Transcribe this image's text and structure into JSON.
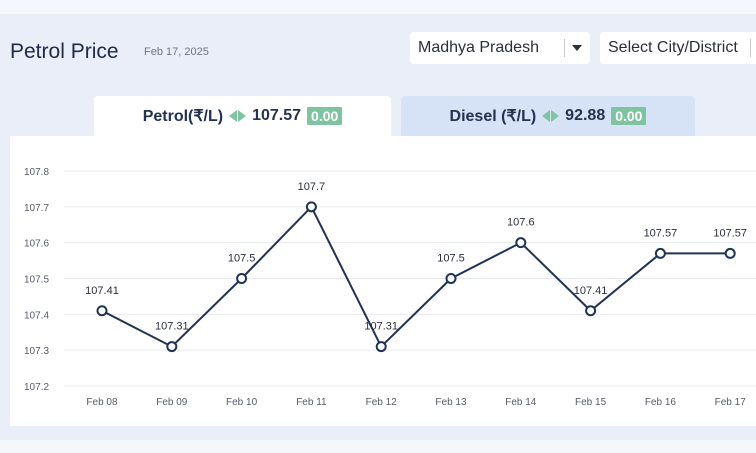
{
  "header": {
    "title": "Petrol Price",
    "date": "Feb 17, 2025"
  },
  "filters": {
    "state": "Madhya Pradesh",
    "city_placeholder": "Select City/District"
  },
  "tabs": [
    {
      "label": "Petrol(₹/L)",
      "price": "107.57",
      "change": "0.00"
    },
    {
      "label": "Diesel (₹/L)",
      "price": "92.88",
      "change": "0.00"
    }
  ],
  "icons": {
    "change_arrows": "left-right-arrows-icon",
    "dropdown": "chevron-down-icon"
  },
  "colors": {
    "line": "#1f3356",
    "badge": "#7fc4a0",
    "active_tab": "#ffffff",
    "inactive_tab": "#d6e3f6"
  },
  "chart_data": {
    "type": "line",
    "x": [
      "Feb 08",
      "Feb 09",
      "Feb 10",
      "Feb 11",
      "Feb 12",
      "Feb 13",
      "Feb 14",
      "Feb 15",
      "Feb 16",
      "Feb 17"
    ],
    "series": [
      {
        "values": [
          107.41,
          107.31,
          107.5,
          107.7,
          107.31,
          107.5,
          107.6,
          107.41,
          107.57,
          107.57
        ]
      }
    ],
    "data_labels": [
      "107.41",
      "107.31",
      "107.5",
      "107.7",
      "107.31",
      "107.5",
      "107.6",
      "107.41",
      "107.57",
      "107.57"
    ],
    "yticks": [
      "107.2",
      "107.3",
      "107.4",
      "107.5",
      "107.6",
      "107.7",
      "107.8"
    ],
    "ylim": [
      107.2,
      107.8
    ],
    "grid": true
  }
}
